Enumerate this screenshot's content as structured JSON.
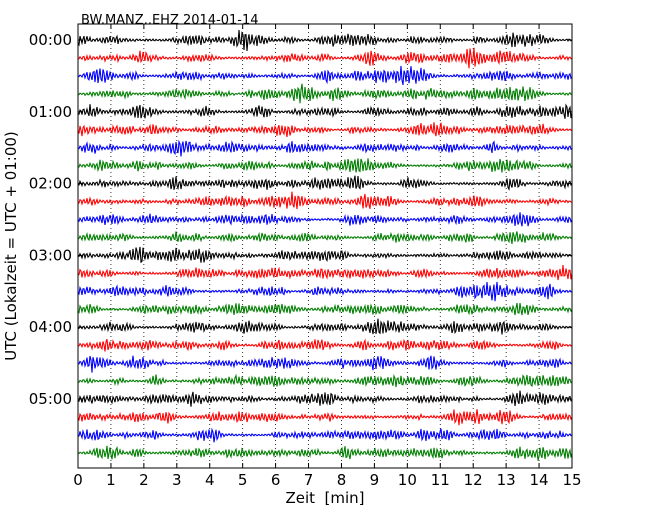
{
  "chart_data": {
    "type": "line",
    "title": "BW.MANZ..EHZ 2014-01-14",
    "xlabel": "Zeit  [min]",
    "ylabel": "UTC (Lokalzeit = UTC + 01:00)",
    "xlim": [
      0,
      15
    ],
    "x_ticks": [
      "0",
      "1",
      "2",
      "3",
      "4",
      "5",
      "6",
      "7",
      "8",
      "9",
      "10",
      "11",
      "12",
      "13",
      "14",
      "15"
    ],
    "y_tick_labels": [
      "00:00",
      "01:00",
      "02:00",
      "03:00",
      "04:00",
      "05:00"
    ],
    "trace_interval_minutes": 15,
    "trace_count": 24,
    "trace_colors": [
      "#000000",
      "#ff0000",
      "#0000ff",
      "#007f00"
    ],
    "grid_x": true,
    "grid_style": "dotted",
    "series": [
      {
        "start": "00:00",
        "color": "#000000"
      },
      {
        "start": "00:15",
        "color": "#ff0000"
      },
      {
        "start": "00:30",
        "color": "#0000ff"
      },
      {
        "start": "00:45",
        "color": "#007f00"
      },
      {
        "start": "01:00",
        "color": "#000000"
      },
      {
        "start": "01:15",
        "color": "#ff0000"
      },
      {
        "start": "01:30",
        "color": "#0000ff"
      },
      {
        "start": "01:45",
        "color": "#007f00"
      },
      {
        "start": "02:00",
        "color": "#000000"
      },
      {
        "start": "02:15",
        "color": "#ff0000"
      },
      {
        "start": "02:30",
        "color": "#0000ff"
      },
      {
        "start": "02:45",
        "color": "#007f00"
      },
      {
        "start": "03:00",
        "color": "#000000"
      },
      {
        "start": "03:15",
        "color": "#ff0000"
      },
      {
        "start": "03:30",
        "color": "#0000ff"
      },
      {
        "start": "03:45",
        "color": "#007f00"
      },
      {
        "start": "04:00",
        "color": "#000000"
      },
      {
        "start": "04:15",
        "color": "#ff0000"
      },
      {
        "start": "04:30",
        "color": "#0000ff"
      },
      {
        "start": "04:45",
        "color": "#007f00"
      },
      {
        "start": "05:00",
        "color": "#000000"
      },
      {
        "start": "05:15",
        "color": "#ff0000"
      },
      {
        "start": "05:30",
        "color": "#0000ff"
      },
      {
        "start": "05:45",
        "color": "#007f00"
      }
    ]
  }
}
